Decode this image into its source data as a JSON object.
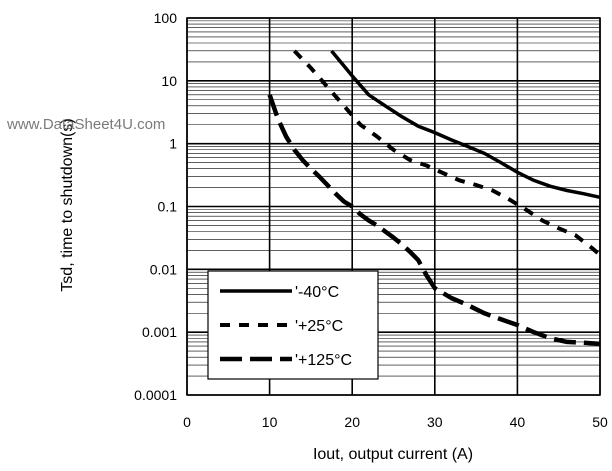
{
  "watermark": "www.DataSheet4U.com",
  "chart_data": {
    "type": "line",
    "title": "",
    "xlabel": "Iout, output current (A)",
    "ylabel": "Tsd, time to shutdown(s)",
    "xlim": [
      0,
      50
    ],
    "ylim": [
      0.0001,
      100
    ],
    "yscale": "log",
    "xticks": [
      0,
      10,
      20,
      30,
      40,
      50
    ],
    "xtick_labels": [
      "0",
      "10",
      "20",
      "30",
      "40",
      "50"
    ],
    "yticks": [
      0.0001,
      0.001,
      0.01,
      0.1,
      1,
      10,
      100
    ],
    "ytick_labels": [
      "0.0001",
      "0.001",
      "0.01",
      "0.1",
      "1",
      "10",
      "100"
    ],
    "grid": true,
    "legend_position": "bottom-left",
    "series": [
      {
        "name": "'-40°C",
        "style": "solid",
        "color": "#000000",
        "x": [
          17.5,
          20,
          22,
          24,
          26,
          28,
          30,
          32,
          34,
          36,
          38,
          40,
          42,
          44,
          46,
          48,
          50
        ],
        "y": [
          30,
          12,
          6,
          4,
          2.7,
          1.9,
          1.5,
          1.15,
          0.9,
          0.7,
          0.5,
          0.35,
          0.26,
          0.21,
          0.18,
          0.16,
          0.14
        ]
      },
      {
        "name": "'+25°C",
        "style": "dashed",
        "color": "#000000",
        "x": [
          13,
          15,
          17,
          19,
          21,
          23,
          25,
          27,
          29,
          31,
          33,
          35,
          37,
          39,
          41,
          43,
          45,
          47,
          49,
          50
        ],
        "y": [
          30,
          16,
          8,
          4,
          2,
          1.3,
          0.8,
          0.55,
          0.45,
          0.34,
          0.26,
          0.22,
          0.18,
          0.13,
          0.09,
          0.06,
          0.045,
          0.035,
          0.022,
          0.017
        ]
      },
      {
        "name": "'+125°C",
        "style": "long-dash",
        "color": "#000000",
        "x": [
          10,
          11,
          12,
          13,
          14,
          15,
          16,
          17,
          18,
          19,
          20,
          21,
          22,
          23,
          24,
          25,
          26,
          27,
          28,
          29,
          30,
          32,
          34,
          36,
          38,
          40,
          42,
          44,
          46,
          48,
          50
        ],
        "y": [
          6,
          2.5,
          1.3,
          0.8,
          0.55,
          0.4,
          0.3,
          0.22,
          0.16,
          0.12,
          0.1,
          0.075,
          0.06,
          0.05,
          0.04,
          0.032,
          0.025,
          0.019,
          0.014,
          0.008,
          0.005,
          0.0035,
          0.0027,
          0.002,
          0.0016,
          0.0013,
          0.001,
          0.0008,
          0.0007,
          0.00068,
          0.00065
        ]
      }
    ]
  }
}
